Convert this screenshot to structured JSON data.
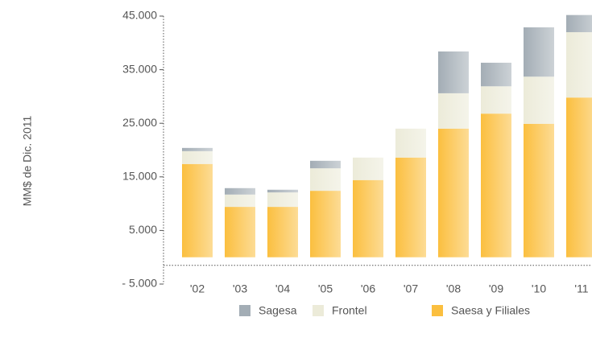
{
  "chart_data": {
    "type": "bar",
    "stacked": true,
    "y_label": "MM$ de Dic. 2011",
    "categories": [
      "'02",
      "'03",
      "'04",
      "'05",
      "'06",
      "'07",
      "'08",
      "'09",
      "'10",
      "'11"
    ],
    "series": [
      {
        "name": "Sagesa",
        "color": "#a3adb5",
        "values": [
          600,
          1200,
          500,
          1400,
          0,
          0,
          7800,
          4400,
          9200,
          3200
        ]
      },
      {
        "name": "Frontel",
        "color": "#ecebd9",
        "values": [
          2400,
          2300,
          2700,
          4200,
          4200,
          5400,
          6600,
          5100,
          8800,
          12200
        ]
      },
      {
        "name": "Saesa y Filiales",
        "color": "#fbbf3f",
        "values": [
          17400,
          9400,
          9400,
          12400,
          14400,
          18600,
          24000,
          26800,
          24900,
          29800
        ]
      }
    ],
    "ylim": [
      -5000,
      45000
    ],
    "yticks": [
      {
        "value": -5000,
        "label": "- 5.000"
      },
      {
        "value": 5000,
        "label": "5.000"
      },
      {
        "value": 15000,
        "label": "15.000"
      },
      {
        "value": 25000,
        "label": "25.000"
      },
      {
        "value": 35000,
        "label": "35.000"
      },
      {
        "value": 45000,
        "label": "45.000"
      }
    ],
    "legend": "bottom"
  }
}
